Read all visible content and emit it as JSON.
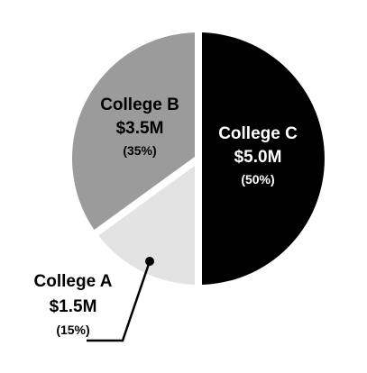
{
  "chart_data": {
    "type": "pie",
    "start_angle_deg": 0,
    "direction": "clockwise",
    "slices": [
      {
        "name": "College C",
        "value_label": "$5.0M",
        "percent_label": "(50%)",
        "value": 5.0,
        "percent": 50,
        "color": "#000000",
        "label_color": "#ffffff"
      },
      {
        "name": "College A",
        "value_label": "$1.5M",
        "percent_label": "(15%)",
        "value": 1.5,
        "percent": 15,
        "color": "#e3e3e4",
        "label_color": "#000000"
      },
      {
        "name": "College B",
        "value_label": "$3.5M",
        "percent_label": "(35%)",
        "value": 3.5,
        "percent": 35,
        "color": "#9b9b9c",
        "label_color": "#000000"
      }
    ],
    "separator_color": "#ffffff"
  }
}
